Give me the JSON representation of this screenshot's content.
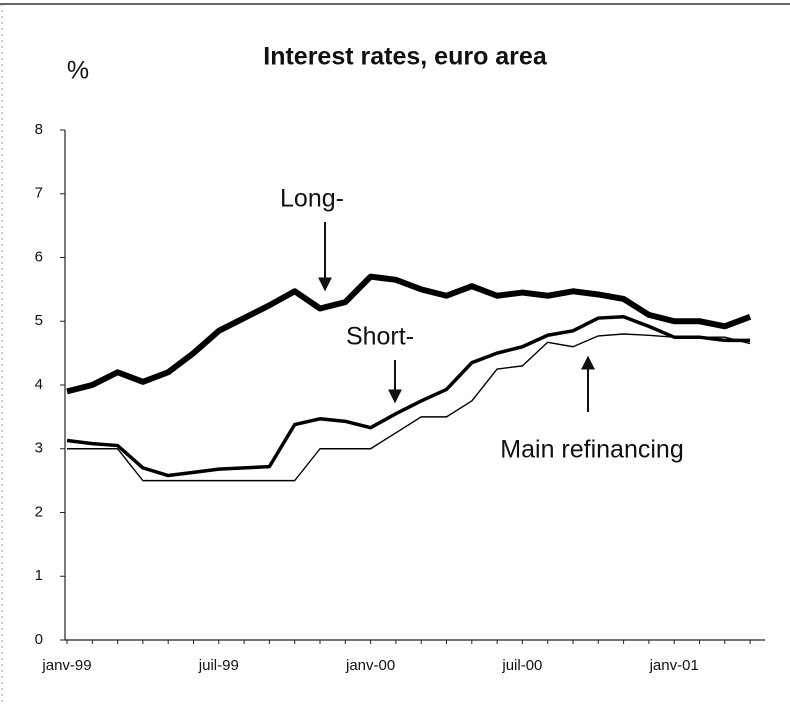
{
  "chart_data": {
    "type": "line",
    "title": "Interest rates, euro area",
    "y_label": "%",
    "categories": [
      "janv-99",
      null,
      null,
      null,
      null,
      null,
      "juil-99",
      null,
      null,
      null,
      null,
      null,
      "janv-00",
      null,
      null,
      null,
      null,
      null,
      "juil-00",
      null,
      null,
      null,
      null,
      null,
      "janv-01",
      null,
      null,
      null
    ],
    "series": [
      {
        "name": "Long-",
        "color": "#000000",
        "values": [
          3.9,
          4.0,
          4.2,
          4.05,
          4.2,
          4.5,
          4.85,
          5.05,
          5.25,
          5.47,
          5.2,
          5.3,
          5.7,
          5.65,
          5.5,
          5.4,
          5.55,
          5.4,
          5.45,
          5.4,
          5.47,
          5.42,
          5.35,
          5.1,
          5.0,
          5.0,
          4.92,
          5.07
        ]
      },
      {
        "name": "Short-",
        "color": "#000000",
        "values": [
          3.13,
          3.08,
          3.05,
          2.7,
          2.58,
          2.63,
          2.68,
          2.7,
          2.72,
          3.38,
          3.47,
          3.43,
          3.33,
          3.55,
          3.75,
          3.93,
          4.35,
          4.5,
          4.6,
          4.78,
          4.85,
          5.05,
          5.07,
          4.92,
          4.75,
          4.75,
          4.7,
          4.7
        ]
      },
      {
        "name": "Main refinancing",
        "color": "#000000",
        "values": [
          3.0,
          3.0,
          3.0,
          2.5,
          2.5,
          2.5,
          2.5,
          2.5,
          2.5,
          2.5,
          3.0,
          3.0,
          3.0,
          3.25,
          3.5,
          3.5,
          3.75,
          4.25,
          4.3,
          4.67,
          4.6,
          4.77,
          4.8,
          4.78,
          4.75,
          4.75,
          4.75,
          4.65
        ]
      }
    ],
    "ylim": [
      0,
      8
    ],
    "yticks": [
      0,
      1,
      2,
      3,
      4,
      5,
      6,
      7,
      8
    ]
  }
}
